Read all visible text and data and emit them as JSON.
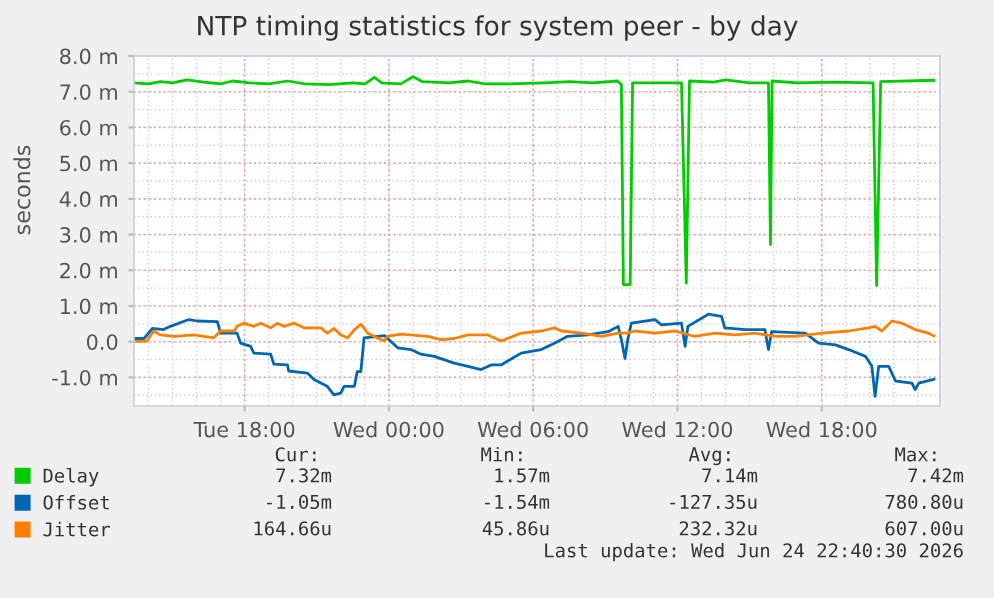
{
  "chart_data": {
    "type": "line",
    "title": "NTP timing statistics for system peer - by day",
    "ylabel": "seconds",
    "xlim": [
      "2026-06-23T13:24",
      "2026-06-24T22:55"
    ],
    "ylim": [
      -1.8,
      8.0
    ],
    "xticks": [
      {
        "value": "2026-06-23T18:00",
        "label": "Tue 18:00"
      },
      {
        "value": "2026-06-24T00:00",
        "label": "Wed 00:00"
      },
      {
        "value": "2026-06-24T06:00",
        "label": "Wed 06:00"
      },
      {
        "value": "2026-06-24T12:00",
        "label": "Wed 12:00"
      },
      {
        "value": "2026-06-24T18:00",
        "label": "Wed 18:00"
      }
    ],
    "yticks": [
      {
        "value": -1,
        "label": "-1.0 m"
      },
      {
        "value": 0,
        "label": "0.0"
      },
      {
        "value": 1,
        "label": "1.0 m"
      },
      {
        "value": 2,
        "label": "2.0 m"
      },
      {
        "value": 3,
        "label": "3.0 m"
      },
      {
        "value": 4,
        "label": "4.0 m"
      },
      {
        "value": 5,
        "label": "5.0 m"
      },
      {
        "value": 6,
        "label": "6.0 m"
      },
      {
        "value": 7,
        "label": "7.0 m"
      },
      {
        "value": 8,
        "label": "8.0 m"
      }
    ],
    "grid": true,
    "legend": "bottom left",
    "marker": "none",
    "line_style": "solid",
    "series": [
      {
        "name": "Delay",
        "color": "#00cc00",
        "x": [
          "2026-06-23T13:24",
          "2026-06-23T14:00",
          "2026-06-23T14:30",
          "2026-06-23T15:00",
          "2026-06-23T15:36",
          "2026-06-23T16:18",
          "2026-06-23T17:00",
          "2026-06-23T17:30",
          "2026-06-23T18:12",
          "2026-06-23T19:00",
          "2026-06-23T19:48",
          "2026-06-23T20:30",
          "2026-06-23T21:30",
          "2026-06-23T22:30",
          "2026-06-23T23:00",
          "2026-06-23T23:24",
          "2026-06-23T23:42",
          "2026-06-24T00:30",
          "2026-06-24T01:00",
          "2026-06-24T01:24",
          "2026-06-24T02:30",
          "2026-06-24T03:18",
          "2026-06-24T04:00",
          "2026-06-24T05:00",
          "2026-06-24T06:30",
          "2026-06-24T07:30",
          "2026-06-24T08:30",
          "2026-06-24T09:30",
          "2026-06-24T09:40",
          "2026-06-24T09:45",
          "2026-06-24T10:02",
          "2026-06-24T10:08",
          "2026-06-24T11:30",
          "2026-06-24T12:10",
          "2026-06-24T12:22",
          "2026-06-24T12:30",
          "2026-06-24T13:30",
          "2026-06-24T14:00",
          "2026-06-24T15:00",
          "2026-06-24T15:47",
          "2026-06-24T15:52",
          "2026-06-24T15:56",
          "2026-06-24T17:00",
          "2026-06-24T18:30",
          "2026-06-24T20:08",
          "2026-06-24T20:17",
          "2026-06-24T20:27",
          "2026-06-24T22:40"
        ],
        "values": [
          7.25,
          7.22,
          7.28,
          7.25,
          7.33,
          7.27,
          7.22,
          7.3,
          7.25,
          7.22,
          7.3,
          7.22,
          7.2,
          7.25,
          7.22,
          7.4,
          7.25,
          7.22,
          7.42,
          7.28,
          7.25,
          7.3,
          7.22,
          7.22,
          7.25,
          7.28,
          7.25,
          7.3,
          7.2,
          1.6,
          1.6,
          7.25,
          7.25,
          7.25,
          1.64,
          7.3,
          7.27,
          7.33,
          7.25,
          7.25,
          2.72,
          7.3,
          7.25,
          7.27,
          7.25,
          1.57,
          7.28,
          7.32
        ]
      },
      {
        "name": "Offset",
        "color": "#0066b3",
        "x": [
          "2026-06-23T13:24",
          "2026-06-23T13:49",
          "2026-06-23T14:10",
          "2026-06-23T14:38",
          "2026-06-23T14:55",
          "2026-06-23T15:41",
          "2026-06-23T16:02",
          "2026-06-23T16:52",
          "2026-06-23T17:00",
          "2026-06-23T17:41",
          "2026-06-23T17:50",
          "2026-06-23T18:15",
          "2026-06-23T18:23",
          "2026-06-23T19:05",
          "2026-06-23T19:13",
          "2026-06-23T19:47",
          "2026-06-23T19:50",
          "2026-06-23T20:37",
          "2026-06-23T20:53",
          "2026-06-23T21:26",
          "2026-06-23T21:43",
          "2026-06-23T22:00",
          "2026-06-23T22:08",
          "2026-06-23T22:34",
          "2026-06-23T22:41",
          "2026-06-23T22:50",
          "2026-06-23T22:58",
          "2026-06-23T23:49",
          "2026-06-24T00:22",
          "2026-06-24T00:55",
          "2026-06-24T01:20",
          "2026-06-24T01:53",
          "2026-06-24T02:43",
          "2026-06-24T03:17",
          "2026-06-24T03:50",
          "2026-06-24T04:15",
          "2026-06-24T04:40",
          "2026-06-24T05:30",
          "2026-06-24T06:20",
          "2026-06-24T06:53",
          "2026-06-24T07:26",
          "2026-06-24T08:17",
          "2026-06-24T09:07",
          "2026-06-24T09:32",
          "2026-06-24T09:40",
          "2026-06-24T09:49",
          "2026-06-24T09:56",
          "2026-06-24T10:05",
          "2026-06-24T11:04",
          "2026-06-24T11:20",
          "2026-06-24T12:10",
          "2026-06-24T12:19",
          "2026-06-24T12:26",
          "2026-06-24T13:17",
          "2026-06-24T13:50",
          "2026-06-24T13:58",
          "2026-06-24T14:49",
          "2026-06-24T15:38",
          "2026-06-24T15:47",
          "2026-06-24T15:55",
          "2026-06-24T17:19",
          "2026-06-24T17:52",
          "2026-06-24T18:34",
          "2026-06-24T19:07",
          "2026-06-24T19:49",
          "2026-06-24T20:05",
          "2026-06-24T20:13",
          "2026-06-24T20:22",
          "2026-06-24T20:47",
          "2026-06-24T21:04",
          "2026-06-24T21:45",
          "2026-06-24T21:53",
          "2026-06-24T22:02",
          "2026-06-24T22:40"
        ],
        "values": [
          0.09,
          0.09,
          0.37,
          0.34,
          0.43,
          0.62,
          0.58,
          0.56,
          0.24,
          0.24,
          -0.04,
          -0.13,
          -0.32,
          -0.35,
          -0.63,
          -0.65,
          -0.82,
          -0.88,
          -1.06,
          -1.25,
          -1.49,
          -1.44,
          -1.25,
          -1.25,
          -0.84,
          -0.84,
          0.11,
          0.17,
          -0.17,
          -0.22,
          -0.35,
          -0.41,
          -0.6,
          -0.69,
          -0.78,
          -0.65,
          -0.65,
          -0.32,
          -0.22,
          -0.04,
          0.15,
          0.19,
          0.28,
          0.43,
          0.06,
          -0.47,
          0.06,
          0.52,
          0.62,
          0.47,
          0.52,
          -0.13,
          0.43,
          0.77,
          0.71,
          0.39,
          0.34,
          0.34,
          -0.22,
          0.28,
          0.24,
          -0.04,
          -0.09,
          -0.22,
          -0.41,
          -0.69,
          -1.53,
          -0.69,
          -0.69,
          -1.1,
          -1.16,
          -1.34,
          -1.16,
          -1.05
        ]
      },
      {
        "name": "Jitter",
        "color": "#ff8000",
        "x": [
          "2026-06-23T13:24",
          "2026-06-23T13:56",
          "2026-06-23T14:13",
          "2026-06-23T14:30",
          "2026-06-23T15:04",
          "2026-06-23T15:53",
          "2026-06-23T16:43",
          "2026-06-23T17:00",
          "2026-06-23T17:34",
          "2026-06-23T17:41",
          "2026-06-23T17:58",
          "2026-06-23T18:23",
          "2026-06-23T18:40",
          "2026-06-23T19:05",
          "2026-06-23T19:22",
          "2026-06-23T19:38",
          "2026-06-23T20:04",
          "2026-06-23T20:28",
          "2026-06-23T21:10",
          "2026-06-23T21:26",
          "2026-06-23T21:43",
          "2026-06-23T22:00",
          "2026-06-23T22:17",
          "2026-06-23T22:34",
          "2026-06-23T22:50",
          "2026-06-23T23:07",
          "2026-06-23T23:23",
          "2026-06-23T23:49",
          "2026-06-23T23:56",
          "2026-06-24T00:30",
          "2026-06-24T01:37",
          "2026-06-24T02:10",
          "2026-06-24T02:43",
          "2026-06-24T03:17",
          "2026-06-24T04:07",
          "2026-06-24T04:40",
          "2026-06-24T05:30",
          "2026-06-24T06:20",
          "2026-06-24T06:53",
          "2026-06-24T07:10",
          "2026-06-24T08:00",
          "2026-06-24T08:50",
          "2026-06-24T09:32",
          "2026-06-24T09:56",
          "2026-06-24T10:13",
          "2026-06-24T11:04",
          "2026-06-24T11:53",
          "2026-06-24T12:43",
          "2026-06-24T13:34",
          "2026-06-24T14:23",
          "2026-06-24T15:13",
          "2026-06-24T16:04",
          "2026-06-24T16:53",
          "2026-06-24T18:00",
          "2026-06-24T19:07",
          "2026-06-24T19:56",
          "2026-06-24T20:13",
          "2026-06-24T20:30",
          "2026-06-24T20:55",
          "2026-06-24T21:20",
          "2026-06-24T21:53",
          "2026-06-24T22:26",
          "2026-06-24T22:40"
        ],
        "values": [
          0.0,
          0.02,
          0.3,
          0.19,
          0.15,
          0.19,
          0.11,
          0.3,
          0.3,
          0.43,
          0.52,
          0.43,
          0.52,
          0.39,
          0.52,
          0.43,
          0.52,
          0.39,
          0.39,
          0.24,
          0.37,
          0.19,
          0.11,
          0.34,
          0.49,
          0.24,
          0.15,
          0.02,
          0.15,
          0.21,
          0.15,
          0.06,
          0.09,
          0.19,
          0.19,
          0.02,
          0.24,
          0.3,
          0.39,
          0.3,
          0.24,
          0.15,
          0.24,
          0.24,
          0.3,
          0.24,
          0.3,
          0.15,
          0.24,
          0.19,
          0.24,
          0.15,
          0.15,
          0.24,
          0.3,
          0.39,
          0.43,
          0.3,
          0.58,
          0.52,
          0.34,
          0.24,
          0.16
        ]
      }
    ],
    "annotations": [
      "Cur:",
      "Min:",
      "Avg:",
      "Max:",
      "7.32m",
      "1.57m",
      "7.14m",
      "7.42m",
      "-1.05m",
      "-1.54m",
      "-127.35u",
      "780.80u",
      "164.66u",
      "45.86u",
      "232.32u",
      "607.00u",
      "Last update: Wed Jun 24 22:40:30 2026"
    ]
  }
}
